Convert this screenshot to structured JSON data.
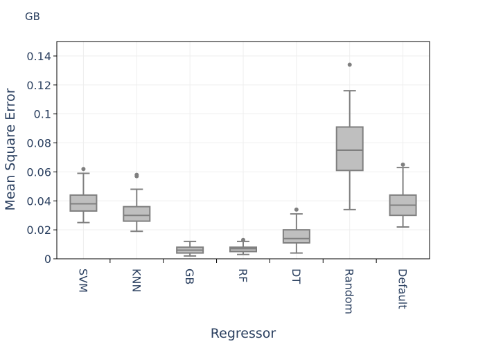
{
  "chart_data": {
    "type": "box",
    "title": "GB",
    "xlabel": "Regressor",
    "ylabel": "Mean Square Error",
    "ylim": [
      0,
      0.15
    ],
    "yticks": [
      {
        "value": 0,
        "label": "0"
      },
      {
        "value": 0.02,
        "label": "0.02"
      },
      {
        "value": 0.04,
        "label": "0.04"
      },
      {
        "value": 0.06,
        "label": "0.06"
      },
      {
        "value": 0.08,
        "label": "0.08"
      },
      {
        "value": 0.1,
        "label": "0.1"
      },
      {
        "value": 0.12,
        "label": "0.12"
      },
      {
        "value": 0.14,
        "label": "0.14"
      }
    ],
    "grid": true,
    "categories": [
      "SVM",
      "KNN",
      "GB",
      "RF",
      "DT",
      "Random",
      "Default"
    ],
    "boxes": [
      {
        "category": "SVM",
        "min": 0.025,
        "q1": 0.033,
        "median": 0.038,
        "q3": 0.044,
        "max": 0.059,
        "outliers": [
          0.062
        ]
      },
      {
        "category": "KNN",
        "min": 0.019,
        "q1": 0.026,
        "median": 0.03,
        "q3": 0.036,
        "max": 0.048,
        "outliers": [
          0.057,
          0.058
        ]
      },
      {
        "category": "GB",
        "min": 0.002,
        "q1": 0.004,
        "median": 0.006,
        "q3": 0.008,
        "max": 0.012,
        "outliers": []
      },
      {
        "category": "RF",
        "min": 0.003,
        "q1": 0.005,
        "median": 0.007,
        "q3": 0.008,
        "max": 0.012,
        "outliers": [
          0.013
        ]
      },
      {
        "category": "DT",
        "min": 0.004,
        "q1": 0.011,
        "median": 0.014,
        "q3": 0.02,
        "max": 0.031,
        "outliers": [
          0.034
        ]
      },
      {
        "category": "Random",
        "min": 0.034,
        "q1": 0.061,
        "median": 0.075,
        "q3": 0.091,
        "max": 0.116,
        "outliers": [
          0.134
        ]
      },
      {
        "category": "Default",
        "min": 0.022,
        "q1": 0.03,
        "median": 0.037,
        "q3": 0.044,
        "max": 0.063,
        "outliers": [
          0.065
        ]
      }
    ],
    "colors": {
      "box_fill": "#bfbfbf",
      "box_line": "#7f7f7f",
      "grid": "#eeeeee",
      "axis": "#000000",
      "text": "#2a3f5f"
    }
  }
}
